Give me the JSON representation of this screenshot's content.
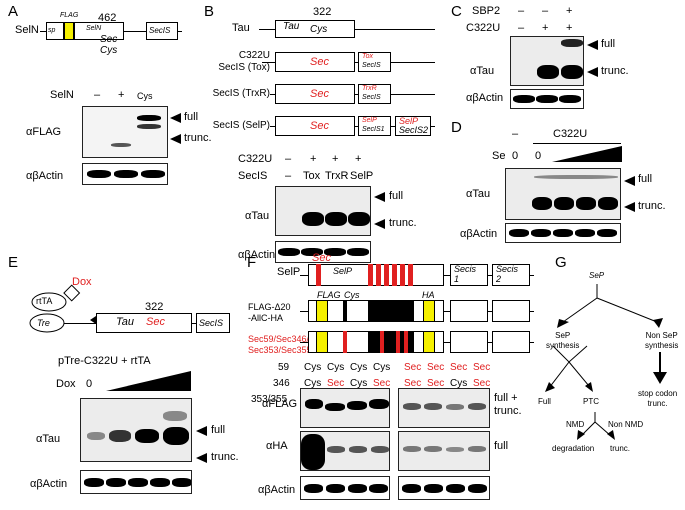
{
  "panels": {
    "A": "A",
    "B": "B",
    "C": "C",
    "D": "D",
    "E": "E",
    "F": "F",
    "G": "G"
  },
  "A": {
    "protein": "SelN",
    "sp": "sp",
    "flag": "FLAG",
    "pos": "462",
    "seln_inner": "SelN",
    "sec": "Sec",
    "cys": "Cys",
    "secis": "SecIS",
    "lane_header": "SelN",
    "lanes": [
      "–",
      "+",
      "Cys"
    ],
    "flag_row": "αFLAG",
    "actin_row": "αβActin",
    "full": "full",
    "trunc": "trunc."
  },
  "B": {
    "tau": "Tau",
    "pos": "322",
    "tau_box": "Tau",
    "cys": "Cys",
    "constructs": [
      {
        "label": "C322U\nSecIS (Tox)",
        "sec": "Sec",
        "secis_a": "Tox",
        "secis_b": "SecIS"
      },
      {
        "label": "SecIS (TrxR)",
        "sec": "Sec",
        "secis_a": "TrxR",
        "secis_b": "SecIS"
      },
      {
        "label": "SecIS (SelP)",
        "sec": "Sec",
        "secis_a": "SelP",
        "secis_b": "SecIS1",
        "secis2_a": "SelP",
        "secis2_b": "SecIS2"
      }
    ],
    "row1_label": "C322U",
    "row1": [
      "–",
      "+",
      "+",
      "+"
    ],
    "row2_label": "SecIS",
    "row2": [
      "–",
      "Tox",
      "TrxR",
      "SelP"
    ],
    "tau_row": "αTau",
    "actin_row": "αβActin",
    "full": "full",
    "trunc": "trunc."
  },
  "C": {
    "row1_label": "SBP2",
    "row1": [
      "–",
      "–",
      "+"
    ],
    "row2_label": "C322U",
    "row2": [
      "–",
      "+",
      "+"
    ],
    "tau_row": "αTau",
    "actin_row": "αβActin",
    "full": "full",
    "trunc": "trunc."
  },
  "D": {
    "header": "C322U",
    "dash": "–",
    "se_label": "Se",
    "se": [
      "0",
      "0"
    ],
    "tau_row": "αTau",
    "actin_row": "αβActin",
    "full": "full",
    "trunc": "trunc."
  },
  "E": {
    "dox": "Dox",
    "rtta": "rtTA",
    "tre": "Tre",
    "pos": "322",
    "tau": "Tau",
    "sec": "Sec",
    "secis": "SecIS",
    "construct": "pTre-C322U + rtTA",
    "dox_label": "Dox",
    "dox0": "0",
    "tau_row": "αTau",
    "actin_row": "αβActin",
    "full": "full",
    "trunc": "trunc."
  },
  "F": {
    "selp": "SelP",
    "sec": "Sec",
    "selp_inner": "SelP",
    "secis1": "Secis\n1",
    "secis2": "Secis\n2",
    "flag": "FLAG",
    "cys": "Cys",
    "ha": "HA",
    "construct2": "FLAG-Δ20\n-AllC-HA",
    "construct3": "Sec59/Sec346/\nSec353/Sec355",
    "rows": [
      {
        "label": "59",
        "vals": [
          "Cys",
          "Cys",
          "Cys",
          "Cys",
          "Sec",
          "Sec",
          "Sec",
          "Sec"
        ]
      },
      {
        "label": "346",
        "vals": [
          "Cys",
          "Sec",
          "Cys",
          "Sec",
          "Sec",
          "Sec",
          "Cys",
          "Sec"
        ]
      },
      {
        "label": "353/355",
        "vals": [
          "Cys",
          "Cys",
          "Sec",
          "Sec",
          "Sec",
          "Sec",
          "Sec",
          "Sec"
        ]
      }
    ],
    "flag_row": "αFLAG",
    "ha_row": "αHA",
    "actin_row": "αβActin",
    "full_trunc": "full +\ntrunc.",
    "full": "full"
  },
  "G": {
    "sep": "SeP",
    "sep_synth": "SeP\nsynthesis",
    "non_sep": "Non SeP\nsynthesis",
    "full": "Full",
    "ptc": "PTC",
    "stop": "stop codon\ntrunc.",
    "nmd": "NMD",
    "non_nmd": "Non NMD",
    "degradation": "degradation",
    "trunc": "trunc."
  },
  "colors": {
    "sec_red": "#e02020",
    "flag_yellow": "#f5f000",
    "black": "#000000"
  }
}
